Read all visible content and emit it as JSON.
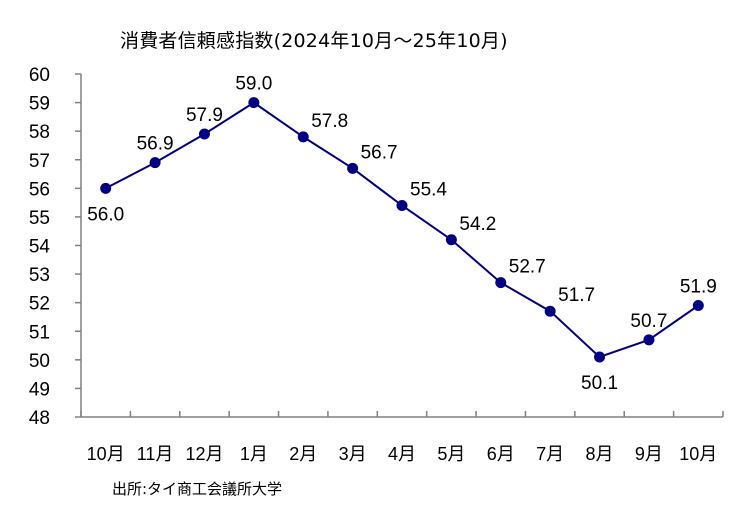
{
  "chart_data": {
    "type": "line",
    "title": "消費者信頼感指数(2024年10月～25年10月)",
    "source": "出所:タイ商工会議所大学",
    "xlabel": "",
    "ylabel": "",
    "categories": [
      "10月",
      "11月",
      "12月",
      "1月",
      "2月",
      "3月",
      "4月",
      "5月",
      "6月",
      "7月",
      "8月",
      "9月",
      "10月"
    ],
    "series": [
      {
        "name": "消費者信頼感指数",
        "values": [
          56.0,
          56.9,
          57.9,
          59.0,
          57.8,
          56.7,
          55.4,
          54.2,
          52.7,
          51.7,
          50.1,
          50.7,
          51.9
        ],
        "labels": [
          "56.0",
          "56.9",
          "57.9",
          "59.0",
          "57.8",
          "56.7",
          "55.4",
          "54.2",
          "52.7",
          "51.7",
          "50.1",
          "50.7",
          "51.9"
        ],
        "label_position": [
          "below",
          "above",
          "above",
          "above",
          "above-right",
          "above-right",
          "above-right",
          "above-right",
          "above-right",
          "above-right",
          "below",
          "above",
          "above"
        ],
        "color": "#000080"
      }
    ],
    "yticks": [
      "60",
      "59",
      "58",
      "57",
      "56",
      "55",
      "54",
      "53",
      "52",
      "51",
      "50",
      "49",
      "48"
    ],
    "ylim": [
      48,
      60
    ],
    "grid": false,
    "legend": "none"
  }
}
